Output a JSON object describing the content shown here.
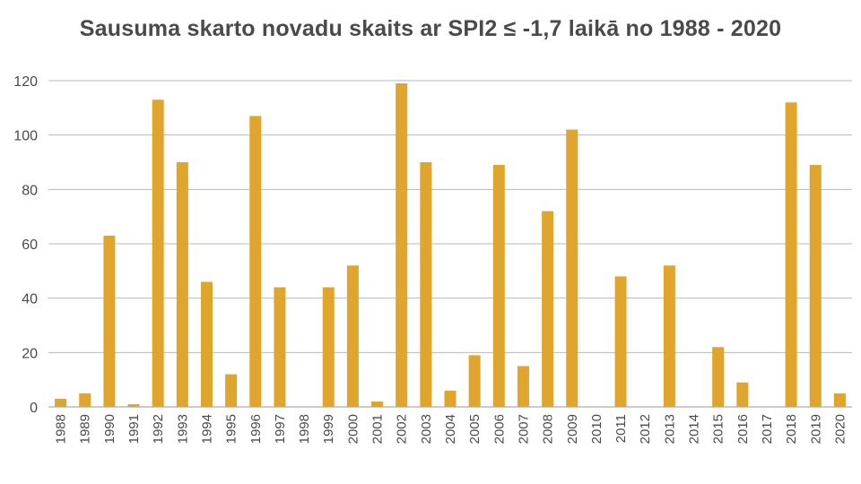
{
  "chart_data": {
    "type": "bar",
    "title": "Sausuma skarto novadu skaits ar SPI2 ≤ -1,7 laikā no 1988 - 2020",
    "xlabel": "",
    "ylabel": "",
    "ylim": [
      0,
      120
    ],
    "yticks": [
      0,
      20,
      40,
      60,
      80,
      100,
      120
    ],
    "grid": true,
    "legend": "none",
    "bar_color": "#e0a52c",
    "categories": [
      "1988",
      "1989",
      "1990",
      "1991",
      "1992",
      "1993",
      "1994",
      "1995",
      "1996",
      "1997",
      "1998",
      "1999",
      "2000",
      "2001",
      "2002",
      "2003",
      "2004",
      "2005",
      "2006",
      "2007",
      "2008",
      "2009",
      "2010",
      "2011",
      "2012",
      "2013",
      "2014",
      "2015",
      "2016",
      "2017",
      "2018",
      "2019",
      "2020"
    ],
    "values": [
      3,
      5,
      63,
      1,
      113,
      90,
      46,
      12,
      107,
      44,
      0,
      44,
      52,
      2,
      119,
      90,
      6,
      19,
      89,
      15,
      72,
      102,
      0,
      48,
      0,
      52,
      0,
      22,
      9,
      0,
      112,
      89,
      5
    ]
  }
}
